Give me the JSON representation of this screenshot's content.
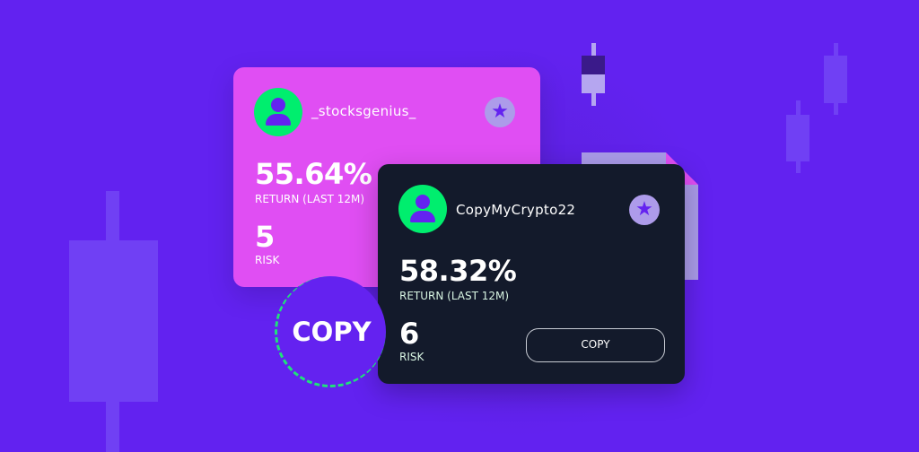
{
  "cards": [
    {
      "username": "_stocksgenius_",
      "return_value": "55.64%",
      "return_label": "RETURN (LAST 12M)",
      "risk_value": "5",
      "risk_label": "RISK"
    },
    {
      "username": "CopyMyCrypto22",
      "return_value": "58.32%",
      "return_label": "RETURN (LAST 12M)",
      "risk_value": "6",
      "risk_label": "RISK",
      "button_label": "COPY"
    }
  ],
  "copy_badge": "COPY",
  "colors": {
    "background": "#6222f0",
    "pink_card": "#e04ef3",
    "dark_card": "#131a2b",
    "avatar": "#00ee6e",
    "star_badge": "#ad9bea"
  }
}
